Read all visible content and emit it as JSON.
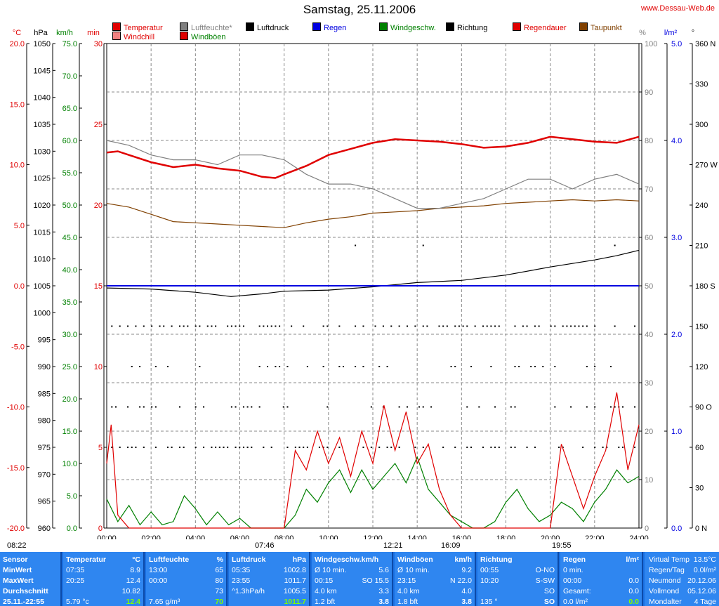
{
  "header": {
    "title": "Samstag, 25.11.2006",
    "website": "www.Dessau-Web.de"
  },
  "legend": [
    {
      "label": "Temperatur",
      "color": "#e00000"
    },
    {
      "label": "Windchill",
      "color": "#f08080"
    },
    {
      "label": "Luftfeuchte*",
      "color": "#808080"
    },
    {
      "label": "Windböen",
      "color": "#e00000"
    },
    {
      "label": "Luftdruck",
      "color": "#000000"
    },
    {
      "label": "Regen",
      "color": "#0000e0"
    },
    {
      "label": "Windgeschw.",
      "color": "#008000"
    },
    {
      "label": "Richtung",
      "color": "#000000"
    },
    {
      "label": "Regendauer",
      "color": "#e00000"
    },
    {
      "label": "Taupunkt",
      "color": "#804000"
    }
  ],
  "axes_units": {
    "temp": "°C",
    "pressure": "hPa",
    "wind": "km/h",
    "minutes": "min",
    "humidity": "%",
    "rain": "l/m²",
    "direction": "°"
  },
  "chart_data": {
    "type": "line",
    "x_range": [
      "00:00",
      "24:00"
    ],
    "x_ticks": [
      "00:00",
      "02:00",
      "04:00",
      "06:00",
      "08:00",
      "10:00",
      "12:00",
      "14:00",
      "16:00",
      "18:00",
      "20:00",
      "22:00",
      "24:00"
    ],
    "axes": {
      "temperature": {
        "unit": "°C",
        "range": [
          -20,
          20
        ],
        "ticks": [
          "20.0",
          "15.0",
          "10.0",
          "5.0",
          "0.0",
          "-5.0",
          "-10.0",
          "-15.0",
          "-20.0"
        ]
      },
      "pressure": {
        "unit": "hPa",
        "range": [
          960,
          1050
        ],
        "ticks": [
          "1050",
          "1045",
          "1040",
          "1035",
          "1030",
          "1025",
          "1020",
          "1015",
          "1010",
          "1005",
          "1000",
          "995",
          "990",
          "985",
          "980",
          "975",
          "970",
          "965",
          "960"
        ]
      },
      "wind": {
        "unit": "km/h",
        "range": [
          0,
          75
        ],
        "ticks": [
          "75.0",
          "70.0",
          "65.0",
          "60.0",
          "55.0",
          "50.0",
          "45.0",
          "40.0",
          "35.0",
          "30.0",
          "25.0",
          "20.0",
          "15.0",
          "10.0",
          "5.0",
          "0.0"
        ]
      },
      "minutes": {
        "unit": "min",
        "range": [
          0,
          30
        ],
        "ticks": [
          "30",
          "25",
          "20",
          "15",
          "10",
          "5",
          "0"
        ]
      },
      "humidity": {
        "unit": "%",
        "range": [
          0,
          100
        ],
        "ticks": [
          "100",
          "90",
          "80",
          "70",
          "60",
          "50",
          "40",
          "30",
          "20",
          "10",
          "0"
        ]
      },
      "rain": {
        "unit": "l/m²",
        "range": [
          0,
          5
        ],
        "ticks": [
          "5.0",
          "4.0",
          "3.0",
          "2.0",
          "1.0",
          "0.0"
        ]
      },
      "direction": {
        "unit": "°",
        "range": [
          0,
          360
        ],
        "ticks": [
          "360 N",
          "330",
          "300",
          "270 W",
          "240",
          "210",
          "180 S",
          "150",
          "120",
          "90 O",
          "60",
          "30",
          "0 N"
        ]
      }
    },
    "series": [
      {
        "name": "Temperatur",
        "axis": "temperature",
        "color": "#e00000",
        "points": [
          [
            0,
            11.0
          ],
          [
            0.5,
            11.1
          ],
          [
            1,
            10.8
          ],
          [
            2,
            10.2
          ],
          [
            3,
            9.8
          ],
          [
            4,
            10.0
          ],
          [
            5,
            9.7
          ],
          [
            6,
            9.5
          ],
          [
            7,
            9.0
          ],
          [
            7.6,
            8.9
          ],
          [
            8,
            9.2
          ],
          [
            9,
            9.9
          ],
          [
            10,
            10.8
          ],
          [
            11,
            11.3
          ],
          [
            12,
            11.8
          ],
          [
            13,
            12.1
          ],
          [
            14,
            12.0
          ],
          [
            15,
            11.9
          ],
          [
            16,
            11.7
          ],
          [
            17,
            11.4
          ],
          [
            18,
            11.5
          ],
          [
            19,
            11.8
          ],
          [
            20,
            12.3
          ],
          [
            21,
            12.1
          ],
          [
            22,
            11.9
          ],
          [
            23,
            11.8
          ],
          [
            24,
            12.3
          ]
        ]
      },
      {
        "name": "Taupunkt",
        "axis": "temperature",
        "color": "#804000",
        "points": [
          [
            0,
            6.8
          ],
          [
            1,
            6.5
          ],
          [
            2,
            5.9
          ],
          [
            3,
            5.3
          ],
          [
            4,
            5.2
          ],
          [
            5,
            5.1
          ],
          [
            6,
            5.0
          ],
          [
            7,
            4.9
          ],
          [
            8,
            4.8
          ],
          [
            9,
            5.2
          ],
          [
            10,
            5.5
          ],
          [
            11,
            5.7
          ],
          [
            12,
            6.0
          ],
          [
            13,
            6.1
          ],
          [
            14,
            6.2
          ],
          [
            15,
            6.4
          ],
          [
            16,
            6.5
          ],
          [
            17,
            6.6
          ],
          [
            18,
            6.8
          ],
          [
            19,
            6.9
          ],
          [
            20,
            7.0
          ],
          [
            21,
            7.1
          ],
          [
            22,
            7.0
          ],
          [
            23,
            7.1
          ],
          [
            24,
            7.0
          ]
        ]
      },
      {
        "name": "Luftfeuchte",
        "axis": "humidity",
        "color": "#808080",
        "points": [
          [
            0,
            80
          ],
          [
            1,
            79
          ],
          [
            2,
            77
          ],
          [
            3,
            76
          ],
          [
            4,
            76
          ],
          [
            5,
            75
          ],
          [
            6,
            77
          ],
          [
            7,
            77
          ],
          [
            8,
            76
          ],
          [
            9,
            73
          ],
          [
            10,
            71
          ],
          [
            11,
            71
          ],
          [
            12,
            70
          ],
          [
            13,
            68
          ],
          [
            14,
            66
          ],
          [
            15,
            66
          ],
          [
            16,
            67
          ],
          [
            17,
            68
          ],
          [
            18,
            70
          ],
          [
            19,
            72
          ],
          [
            20,
            72
          ],
          [
            21,
            70
          ],
          [
            22,
            72
          ],
          [
            23,
            73
          ],
          [
            24,
            71
          ]
        ]
      },
      {
        "name": "Luftdruck",
        "axis": "pressure",
        "color": "#000000",
        "points": [
          [
            0,
            1004.6
          ],
          [
            2,
            1004.4
          ],
          [
            4,
            1003.8
          ],
          [
            5.6,
            1003.0
          ],
          [
            7,
            1003.5
          ],
          [
            8,
            1004.0
          ],
          [
            10,
            1004.2
          ],
          [
            12,
            1004.8
          ],
          [
            14,
            1005.6
          ],
          [
            16,
            1006.0
          ],
          [
            18,
            1007.0
          ],
          [
            20,
            1008.5
          ],
          [
            22,
            1009.8
          ],
          [
            23,
            1010.6
          ],
          [
            24,
            1011.6
          ]
        ]
      },
      {
        "name": "Windgeschw.",
        "axis": "wind",
        "color": "#008000",
        "points": [
          [
            0,
            4.5
          ],
          [
            0.5,
            1
          ],
          [
            1,
            3.5
          ],
          [
            1.5,
            0.5
          ],
          [
            2,
            2.5
          ],
          [
            2.5,
            0.5
          ],
          [
            3,
            1
          ],
          [
            3.5,
            5
          ],
          [
            4,
            3
          ],
          [
            4.5,
            0.5
          ],
          [
            5,
            2.5
          ],
          [
            5.5,
            0.5
          ],
          [
            6,
            1.5
          ],
          [
            6.5,
            0
          ],
          [
            7,
            0
          ],
          [
            8,
            0
          ],
          [
            8.5,
            2
          ],
          [
            9,
            6
          ],
          [
            9.5,
            4
          ],
          [
            10,
            7
          ],
          [
            10.5,
            9
          ],
          [
            11,
            5.5
          ],
          [
            11.5,
            9
          ],
          [
            12,
            6
          ],
          [
            12.5,
            8
          ],
          [
            13,
            10
          ],
          [
            13.5,
            7
          ],
          [
            14,
            11
          ],
          [
            14.5,
            6
          ],
          [
            15,
            4
          ],
          [
            15.5,
            2
          ],
          [
            16,
            1
          ],
          [
            16.5,
            0
          ],
          [
            17,
            0
          ],
          [
            17.5,
            1
          ],
          [
            18,
            4
          ],
          [
            18.5,
            6
          ],
          [
            19,
            3
          ],
          [
            19.5,
            1
          ],
          [
            20,
            2
          ],
          [
            20.5,
            4
          ],
          [
            21,
            3
          ],
          [
            21.5,
            1
          ],
          [
            22,
            4
          ],
          [
            22.5,
            6
          ],
          [
            23,
            9
          ],
          [
            23.5,
            7
          ],
          [
            24,
            8
          ]
        ]
      },
      {
        "name": "Windböen",
        "axis": "wind",
        "color": "#e00000",
        "points": [
          [
            0,
            10
          ],
          [
            0.2,
            16
          ],
          [
            0.5,
            2
          ],
          [
            1,
            0
          ],
          [
            8,
            0
          ],
          [
            8.5,
            12
          ],
          [
            9,
            9
          ],
          [
            9.5,
            15
          ],
          [
            10,
            10
          ],
          [
            10.5,
            14
          ],
          [
            11,
            8
          ],
          [
            11.5,
            15
          ],
          [
            12,
            10
          ],
          [
            12.5,
            19
          ],
          [
            13,
            12
          ],
          [
            13.5,
            18
          ],
          [
            14,
            10
          ],
          [
            14.5,
            13
          ],
          [
            15,
            6
          ],
          [
            15.5,
            2
          ],
          [
            16,
            0
          ],
          [
            20,
            0
          ],
          [
            20.5,
            13
          ],
          [
            21,
            8
          ],
          [
            21.5,
            3
          ],
          [
            22,
            8
          ],
          [
            22.5,
            12
          ],
          [
            23,
            21
          ],
          [
            23.5,
            9
          ],
          [
            24,
            16
          ]
        ]
      },
      {
        "name": "Regen",
        "axis": "humidity",
        "color": "#0000e0",
        "points": [
          [
            0,
            50
          ],
          [
            24,
            50
          ]
        ]
      }
    ]
  },
  "sun_times": {
    "sunrise": "07:46",
    "sunset": "16:09",
    "moonset": "12:21",
    "moonrise": "19:55",
    "daylength": "08:22"
  },
  "stats": {
    "row_labels": [
      "Sensor",
      "MinWert",
      "MaxWert",
      "Durchschnitt",
      "25.11.-22:55"
    ],
    "temperature": {
      "title": "Temperatur",
      "unit": "°C",
      "min_time": "07:35",
      "min": "8.9",
      "max_time": "20:25",
      "max": "12.4",
      "avg": "10.82",
      "extra": "5.79 °c",
      "extra_val": "12.4"
    },
    "humidity": {
      "title": "Luftfeuchte",
      "unit": "%",
      "min_time": "13:00",
      "min": "65",
      "max_time": "00:00",
      "max": "80",
      "avg": "73",
      "extra": "7.65 g/m³",
      "extra_val": "70"
    },
    "pressure": {
      "title": "Luftdruck",
      "unit": "hPa",
      "min_time": "05:35",
      "min": "1002.8",
      "max_time": "23:55",
      "max": "1011.7",
      "avg_label": "^1.3hPa/h",
      "avg": "1005.5",
      "extra_val": "1011.7"
    },
    "wind": {
      "title": "Windgeschw.km/h",
      "r1_label": "Ø 10 min.",
      "r1": "5.6",
      "r2_time": "00:15",
      "r2_dir": "SO",
      "r2": "15.5",
      "r3_label": "4.0 km",
      "r3": "3.3",
      "extra": "1.2 bft",
      "extra_val": "3.8"
    },
    "gust": {
      "title": "Windböen",
      "unit": "km/h",
      "r1_label": "Ø 10 min.",
      "r1": "9.2",
      "r2_time": "23:15",
      "r2_dir": "N",
      "r2": "22.0",
      "r3_label": "4.0 km",
      "r3": "4.0",
      "extra": "1.8 bft",
      "extra_val": "3.8"
    },
    "direction": {
      "title": "Richtung",
      "r1_time": "00:55",
      "r1": "O-NO",
      "r2_time": "10:20",
      "r2": "S-SW",
      "r3": "SO",
      "extra": "135 °",
      "extra_val": "SO"
    },
    "rain": {
      "title": "Regen",
      "unit": "l/m²",
      "r1_label": "0 min.",
      "r2_time": "00:00",
      "r2": "0.0",
      "r3_label": "Gesamt:",
      "r3": "0.0",
      "extra": "0.0 l/m²",
      "extra_val": "0.0"
    },
    "side": [
      {
        "label": "Virtual Temp",
        "value": "13.5°C"
      },
      {
        "label": "Regen/Tag",
        "value": "0.0l/m²"
      },
      {
        "label": "Neumond",
        "value": "20.12.06"
      },
      {
        "label": "Vollmond",
        "value": "05.12.06"
      },
      {
        "label": "Mondalter",
        "value": "4 Tage"
      }
    ]
  }
}
